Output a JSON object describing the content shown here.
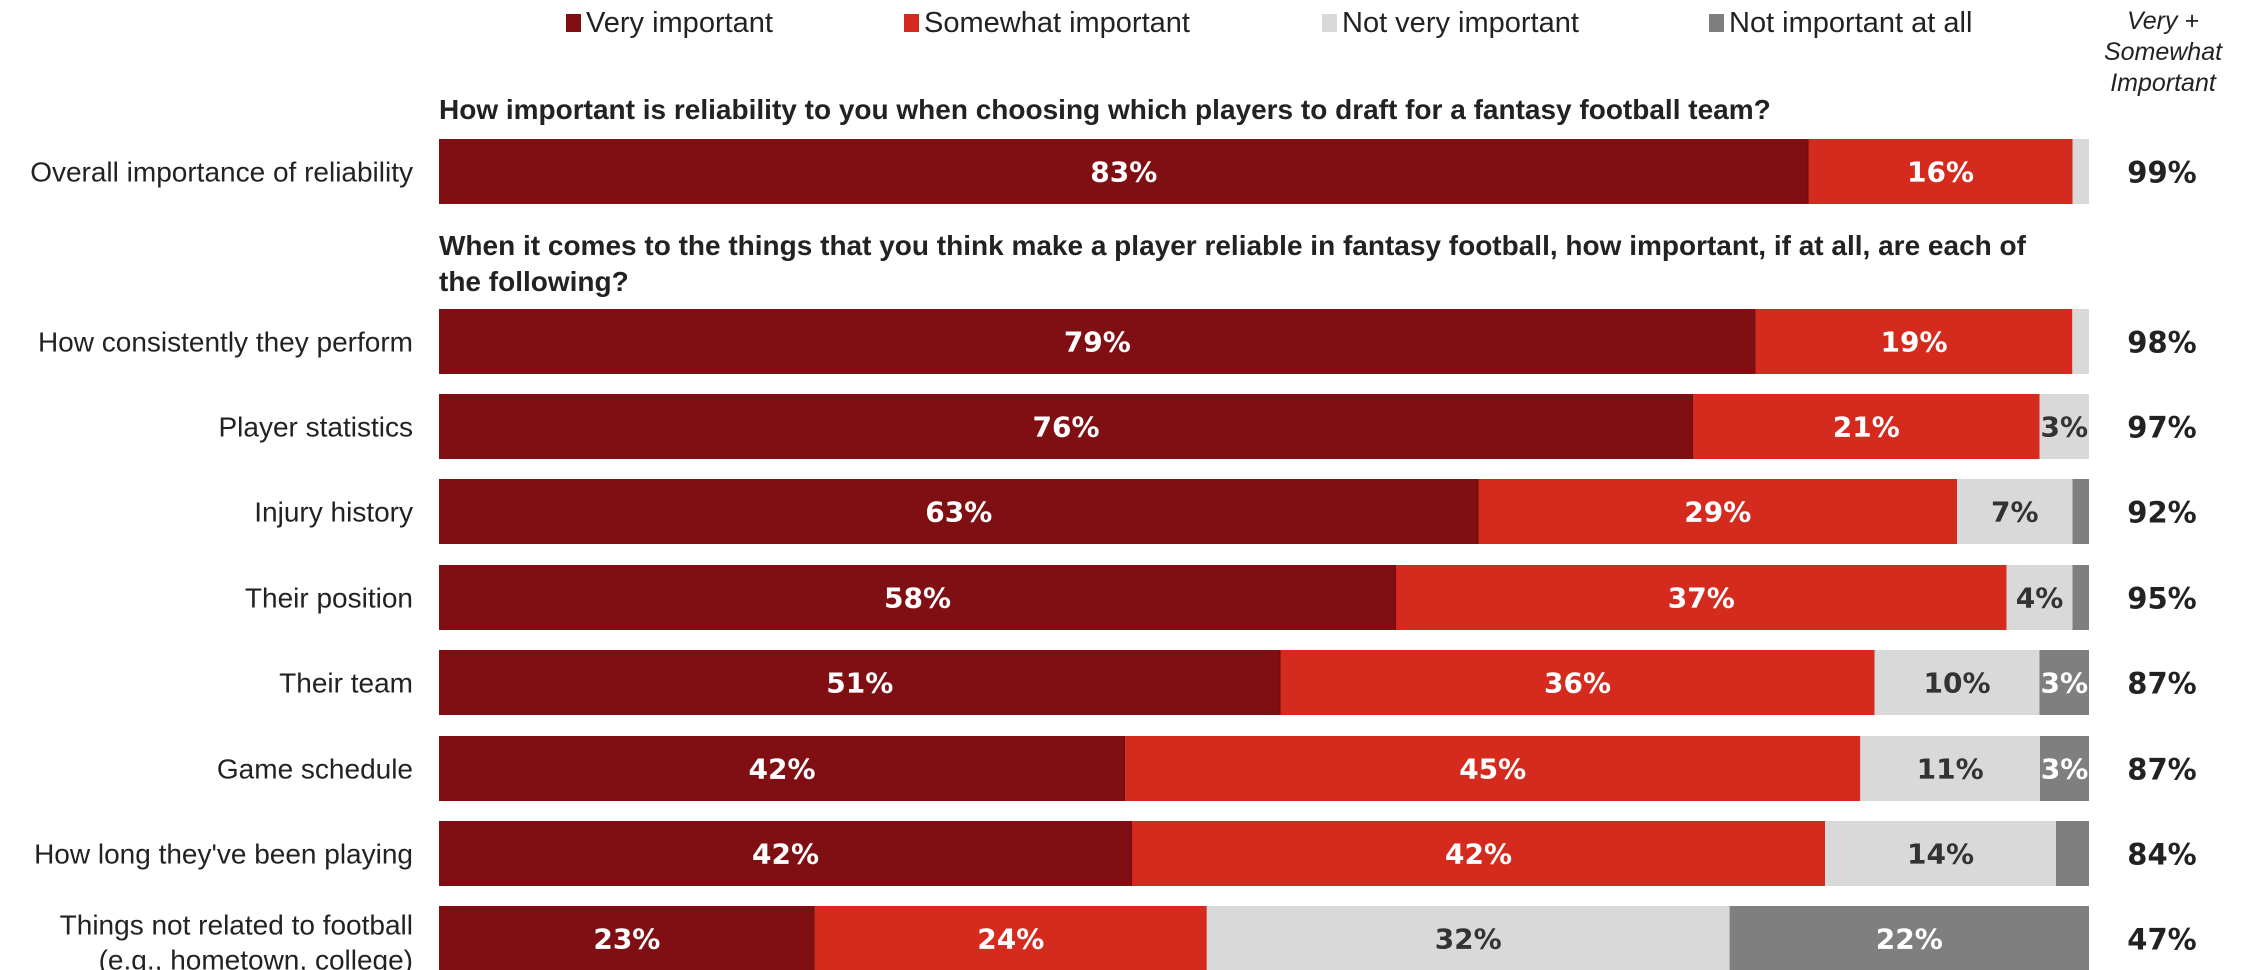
{
  "chart_data": {
    "type": "bar",
    "orientation": "horizontal",
    "stacked": true,
    "legend": {
      "placement": "top",
      "entries": [
        {
          "name": "Very important",
          "color": "#800f13"
        },
        {
          "name": "Somewhat important",
          "color": "#d52b1e"
        },
        {
          "name": "Not very important",
          "color": "#d9d9d9"
        },
        {
          "name": "Not important at all",
          "color": "#7f7f7f"
        }
      ]
    },
    "net_header": [
      "Very +",
      "Somewhat",
      "Important"
    ],
    "questions": [
      "How important is reliability to you when choosing which players to draft for a fantasy football team?",
      "When it comes to the things that you think make a player reliable in fantasy football, how important, if at all, are each of",
      "the following?"
    ],
    "rows": [
      {
        "category": [
          "Overall importance of reliability"
        ],
        "values": [
          83,
          16,
          1,
          0
        ],
        "labels": [
          "83%",
          "16%",
          "",
          ""
        ],
        "net": "99%"
      },
      {
        "category": [
          "How consistently they perform"
        ],
        "values": [
          79,
          19,
          1,
          0
        ],
        "labels": [
          "79%",
          "19%",
          "",
          ""
        ],
        "net": "98%"
      },
      {
        "category": [
          "Player statistics"
        ],
        "values": [
          76,
          21,
          3,
          0
        ],
        "labels": [
          "76%",
          "21%",
          "3%",
          ""
        ],
        "net": "97%"
      },
      {
        "category": [
          "Injury history"
        ],
        "values": [
          63,
          29,
          7,
          1
        ],
        "labels": [
          "63%",
          "29%",
          "7%",
          ""
        ],
        "net": "92%"
      },
      {
        "category": [
          "Their position"
        ],
        "values": [
          58,
          37,
          4,
          1
        ],
        "labels": [
          "58%",
          "37%",
          "4%",
          ""
        ],
        "net": "95%"
      },
      {
        "category": [
          "Their team"
        ],
        "values": [
          51,
          36,
          10,
          3
        ],
        "labels": [
          "51%",
          "36%",
          "10%",
          "3%"
        ],
        "net": "87%"
      },
      {
        "category": [
          "Game schedule"
        ],
        "values": [
          42,
          45,
          11,
          3
        ],
        "labels": [
          "42%",
          "45%",
          "11%",
          "3%"
        ],
        "net": "87%"
      },
      {
        "category": [
          "How long they've been playing"
        ],
        "values": [
          42,
          42,
          14,
          2
        ],
        "labels": [
          "42%",
          "42%",
          "14%",
          ""
        ],
        "net": "84%"
      },
      {
        "category": [
          "Things not related to football",
          "(e.g., hometown, college)"
        ],
        "values": [
          23,
          24,
          32,
          22
        ],
        "labels": [
          "23%",
          "24%",
          "32%",
          "22%"
        ],
        "net": "47%"
      }
    ]
  }
}
